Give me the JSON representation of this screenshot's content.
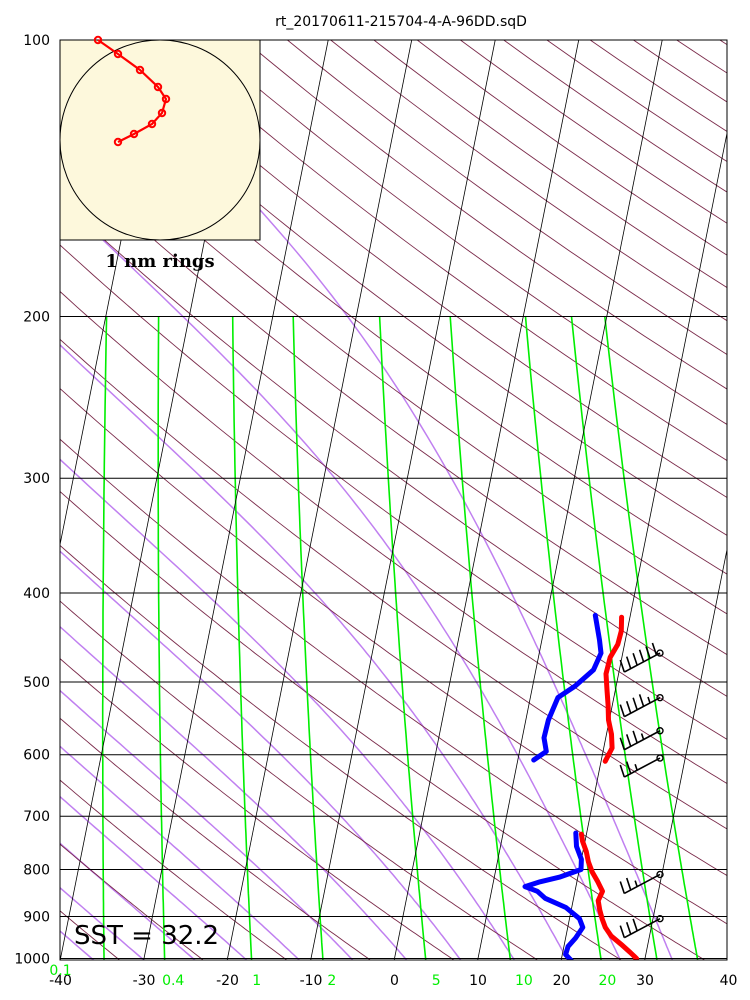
{
  "chart_data": {
    "type": "skew-t",
    "title": "rt_20170611-215704-4-A-96DD.sqD",
    "annotation": "SST = 32.2",
    "hodograph_label": "1 nm rings",
    "pressure_ticks": [
      100,
      200,
      300,
      400,
      500,
      600,
      700,
      800,
      900,
      1000
    ],
    "temperature_ticks": [
      -40,
      -30,
      -20,
      -10,
      0,
      10,
      20,
      30,
      40
    ],
    "mixing_ratio_labels": [
      {
        "t": -40,
        "label": "0.1"
      },
      {
        "t": -26.5,
        "label": "0.4"
      },
      {
        "t": -16.5,
        "label": "1"
      },
      {
        "t": -7.5,
        "label": "2"
      },
      {
        "t": 5,
        "label": "5"
      },
      {
        "t": 15.5,
        "label": "10"
      },
      {
        "t": 25.5,
        "label": "20"
      }
    ],
    "xlim": [
      -40,
      40
    ],
    "ylim_hpa": [
      1050,
      100
    ],
    "grid": true,
    "colors": {
      "temperature": "#ff0000",
      "dewpoint": "#0000ff",
      "dry_adiabat": "#7a2a4a",
      "moist_adiabat": "#c080f0",
      "mixing_ratio": "#00ee00",
      "isotherm": "#000000",
      "hodograph_bg": "#fdf8dc"
    },
    "series": [
      {
        "name": "Temperature",
        "points": [
          [
            1015,
            28.7
          ],
          [
            1000,
            29.0
          ],
          [
            985,
            28.1
          ],
          [
            965,
            26.8
          ],
          [
            945,
            25.4
          ],
          [
            925,
            24.5
          ],
          [
            905,
            23.9
          ],
          [
            885,
            23.4
          ],
          [
            865,
            23.0
          ],
          [
            845,
            23.3
          ],
          [
            825,
            22.5
          ],
          [
            805,
            21.6
          ],
          [
            785,
            20.9
          ],
          [
            765,
            20.4
          ],
          [
            745,
            19.7
          ],
          [
            732,
            19.4
          ],
          [
            610,
            20.5
          ],
          [
            590,
            21.0
          ],
          [
            570,
            20.6
          ],
          [
            550,
            19.9
          ],
          [
            530,
            19.5
          ],
          [
            510,
            19.0
          ],
          [
            490,
            18.5
          ],
          [
            470,
            18.6
          ],
          [
            455,
            19.2
          ],
          [
            440,
            19.3
          ],
          [
            425,
            19.0
          ]
        ]
      },
      {
        "name": "Dewpoint",
        "points": [
          [
            1010,
            21.5
          ],
          [
            990,
            20.4
          ],
          [
            970,
            20.5
          ],
          [
            950,
            21.2
          ],
          [
            925,
            21.8
          ],
          [
            905,
            21.2
          ],
          [
            880,
            19.3
          ],
          [
            860,
            16.6
          ],
          [
            845,
            15.5
          ],
          [
            835,
            13.9
          ],
          [
            825,
            15.6
          ],
          [
            815,
            17.9
          ],
          [
            800,
            20.2
          ],
          [
            780,
            20.0
          ],
          [
            755,
            19.1
          ],
          [
            730,
            18.7
          ],
          [
            608,
            11.9
          ],
          [
            595,
            13.2
          ],
          [
            575,
            12.6
          ],
          [
            550,
            12.7
          ],
          [
            520,
            13.3
          ],
          [
            505,
            15.1
          ],
          [
            485,
            16.9
          ],
          [
            465,
            17.4
          ],
          [
            450,
            16.9
          ],
          [
            435,
            16.3
          ],
          [
            423,
            15.8
          ]
        ]
      }
    ],
    "wind_barbs": [
      {
        "p": 465,
        "speed_kt": 60
      },
      {
        "p": 520,
        "speed_kt": 45
      },
      {
        "p": 565,
        "speed_kt": 35
      },
      {
        "p": 605,
        "speed_kt": 25
      },
      {
        "p": 810,
        "speed_kt": 25
      },
      {
        "p": 905,
        "speed_kt": 30
      }
    ],
    "hodograph_points": [
      [
        -0.62,
        -1.0
      ],
      [
        -0.42,
        -0.86
      ],
      [
        -0.2,
        -0.7
      ],
      [
        -0.02,
        -0.53
      ],
      [
        0.06,
        -0.41
      ],
      [
        0.02,
        -0.27
      ],
      [
        -0.08,
        -0.16
      ],
      [
        -0.26,
        -0.06
      ],
      [
        -0.42,
        0.02
      ]
    ]
  }
}
